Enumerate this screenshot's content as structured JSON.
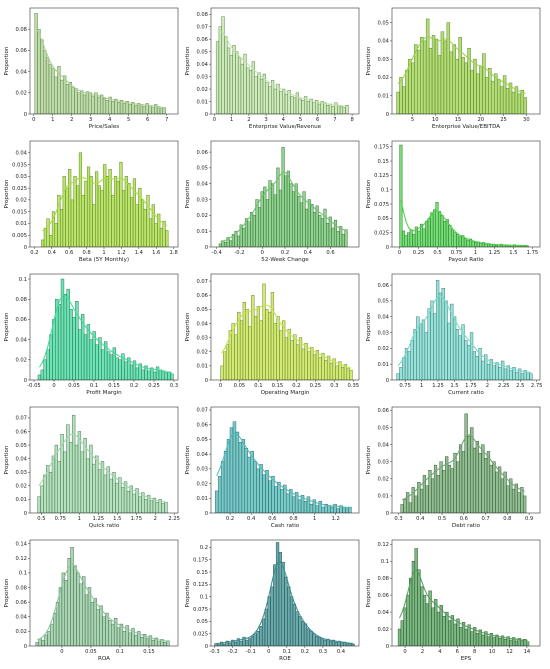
{
  "figure": {
    "ylabel": "Proportion"
  },
  "chart_data": [
    {
      "type": "bar",
      "xlabel": "Price/Sales",
      "ylabel": "Proportion",
      "color": "#a8d08d",
      "edge": "#5a7d4a",
      "xlim": [
        -0.2,
        7.6
      ],
      "ylim": [
        0,
        0.1
      ],
      "xticks": [
        0,
        1,
        2,
        3,
        4,
        5,
        6,
        7
      ],
      "yticks": [
        0,
        0.02,
        0.04,
        0.06,
        0.08
      ],
      "bin_start": 0.05,
      "bin_width": 0.15,
      "values": [
        0.095,
        0.08,
        0.07,
        0.06,
        0.053,
        0.047,
        0.043,
        0.035,
        0.045,
        0.032,
        0.036,
        0.028,
        0.03,
        0.025,
        0.024,
        0.02,
        0.022,
        0.018,
        0.021,
        0.02,
        0.017,
        0.02,
        0.016,
        0.018,
        0.015,
        0.013,
        0.016,
        0.012,
        0.014,
        0.011,
        0.013,
        0.01,
        0.012,
        0.009,
        0.011,
        0.008,
        0.01,
        0.009,
        0.007,
        0.01,
        0.008,
        0.006,
        0.009,
        0.007,
        0.005,
        0.006
      ]
    },
    {
      "type": "bar",
      "xlabel": "Enterprise Value/Revenue",
      "ylabel": "Proportion",
      "color": "#bfe3a6",
      "edge": "#4f7a3d",
      "xlim": [
        -0.2,
        8.4
      ],
      "ylim": [
        0,
        0.085
      ],
      "xticks": [
        0,
        1,
        2,
        3,
        4,
        5,
        6,
        7,
        8
      ],
      "yticks": [
        0,
        0.01,
        0.02,
        0.03,
        0.04,
        0.05,
        0.06,
        0.07,
        0.08
      ],
      "bin_start": 0.1,
      "bin_width": 0.16,
      "values": [
        0.058,
        0.07,
        0.078,
        0.062,
        0.053,
        0.047,
        0.055,
        0.05,
        0.045,
        0.04,
        0.048,
        0.037,
        0.035,
        0.042,
        0.03,
        0.033,
        0.028,
        0.032,
        0.025,
        0.022,
        0.027,
        0.02,
        0.024,
        0.018,
        0.02,
        0.016,
        0.019,
        0.014,
        0.013,
        0.017,
        0.012,
        0.011,
        0.014,
        0.01,
        0.012,
        0.009,
        0.011,
        0.008,
        0.01,
        0.009,
        0.007,
        0.008,
        0.006,
        0.009,
        0.007,
        0.006,
        0.005,
        0.007
      ]
    },
    {
      "type": "bar",
      "xlabel": "Enterprise Value/EBITDA",
      "ylabel": "Proportion",
      "color": "#9cd14a",
      "edge": "#4d7a22",
      "xlim": [
        0.5,
        33
      ],
      "ylim": [
        0,
        0.058
      ],
      "xticks": [
        5,
        10,
        15,
        20,
        25,
        30
      ],
      "yticks": [
        0,
        0.01,
        0.02,
        0.03,
        0.04,
        0.05
      ],
      "bin_start": 1.5,
      "bin_width": 0.65,
      "values": [
        0.012,
        0.02,
        0.015,
        0.024,
        0.03,
        0.028,
        0.038,
        0.035,
        0.042,
        0.04,
        0.052,
        0.036,
        0.043,
        0.041,
        0.032,
        0.045,
        0.04,
        0.05,
        0.034,
        0.038,
        0.03,
        0.042,
        0.031,
        0.028,
        0.036,
        0.024,
        0.03,
        0.022,
        0.026,
        0.033,
        0.02,
        0.025,
        0.018,
        0.022,
        0.019,
        0.015,
        0.021,
        0.014,
        0.017,
        0.012,
        0.015,
        0.011,
        0.013,
        0.009
      ]
    },
    {
      "type": "bar",
      "xlabel": "Beta (5Y Monthly)",
      "ylabel": "Proportion",
      "color": "#a6dc3c",
      "edge": "#557a1d",
      "xlim": [
        0.15,
        1.85
      ],
      "ylim": [
        0,
        0.045
      ],
      "xticks": [
        0.2,
        0.4,
        0.6,
        0.8,
        1.0,
        1.2,
        1.4,
        1.6,
        1.8
      ],
      "yticks": [
        0,
        0.005,
        0.01,
        0.015,
        0.02,
        0.025,
        0.03,
        0.035,
        0.04
      ],
      "bin_start": 0.28,
      "bin_width": 0.031,
      "values": [
        0.003,
        0.008,
        0.012,
        0.005,
        0.015,
        0.01,
        0.022,
        0.016,
        0.03,
        0.025,
        0.033,
        0.02,
        0.03,
        0.026,
        0.04,
        0.022,
        0.028,
        0.034,
        0.03,
        0.018,
        0.032,
        0.026,
        0.024,
        0.035,
        0.03,
        0.033,
        0.022,
        0.03,
        0.028,
        0.036,
        0.024,
        0.03,
        0.027,
        0.021,
        0.029,
        0.018,
        0.025,
        0.02,
        0.016,
        0.022,
        0.012,
        0.018,
        0.01,
        0.014,
        0.008,
        0.011,
        0.007
      ]
    },
    {
      "type": "bar",
      "xlabel": "52-Week Change",
      "ylabel": "Proportion",
      "color": "#6cc36c",
      "edge": "#2f6a2f",
      "xlim": [
        -0.45,
        0.85
      ],
      "ylim": [
        0,
        0.067
      ],
      "xticks": [
        -0.4,
        -0.2,
        0,
        0.2,
        0.4,
        0.6
      ],
      "yticks": [
        0,
        0.01,
        0.02,
        0.03,
        0.04,
        0.05,
        0.06
      ],
      "bin_start": -0.38,
      "bin_width": 0.023,
      "values": [
        0.002,
        0.004,
        0.003,
        0.006,
        0.004,
        0.008,
        0.01,
        0.007,
        0.014,
        0.012,
        0.018,
        0.016,
        0.022,
        0.02,
        0.03,
        0.025,
        0.035,
        0.038,
        0.03,
        0.042,
        0.04,
        0.033,
        0.05,
        0.036,
        0.063,
        0.045,
        0.048,
        0.04,
        0.035,
        0.04,
        0.032,
        0.028,
        0.035,
        0.024,
        0.03,
        0.027,
        0.022,
        0.026,
        0.02,
        0.018,
        0.024,
        0.015,
        0.019,
        0.012,
        0.017,
        0.01,
        0.013,
        0.008,
        0.011
      ]
    },
    {
      "type": "bar",
      "xlabel": "Payout Ratio",
      "ylabel": "Proportion",
      "color": "#4ad34a",
      "edge": "#237023",
      "xlim": [
        -0.1,
        1.85
      ],
      "ylim": [
        0,
        0.185
      ],
      "xticks": [
        0.0,
        0.25,
        0.5,
        0.75,
        1.0,
        1.25,
        1.5,
        1.75
      ],
      "yticks": [
        0,
        0.025,
        0.05,
        0.075,
        0.1,
        0.125,
        0.15,
        0.175
      ],
      "bin_start": 0.0,
      "bin_width": 0.034,
      "values": [
        0.178,
        0.028,
        0.02,
        0.025,
        0.03,
        0.022,
        0.035,
        0.028,
        0.04,
        0.032,
        0.045,
        0.05,
        0.06,
        0.065,
        0.078,
        0.062,
        0.055,
        0.045,
        0.048,
        0.038,
        0.03,
        0.025,
        0.022,
        0.018,
        0.02,
        0.015,
        0.012,
        0.014,
        0.01,
        0.008,
        0.009,
        0.006,
        0.008,
        0.005,
        0.006,
        0.004,
        0.005,
        0.003,
        0.004,
        0.005,
        0.003,
        0.004,
        0.002,
        0.003,
        0.004,
        0.002,
        0.003,
        0.002,
        0.003,
        0.002
      ]
    },
    {
      "type": "bar",
      "xlabel": "Profit Margin",
      "ylabel": "Proportion",
      "color": "#3fd99a",
      "edge": "#1f7050",
      "xlim": [
        -0.06,
        0.31
      ],
      "ylim": [
        0,
        0.105
      ],
      "xticks": [
        -0.05,
        0.0,
        0.05,
        0.1,
        0.15,
        0.2,
        0.25,
        0.3
      ],
      "yticks": [
        0,
        0.02,
        0.04,
        0.06,
        0.08,
        0.1
      ],
      "bin_start": -0.04,
      "bin_width": 0.0072,
      "values": [
        0.005,
        0.01,
        0.02,
        0.03,
        0.045,
        0.06,
        0.08,
        0.075,
        0.1,
        0.085,
        0.09,
        0.07,
        0.062,
        0.078,
        0.05,
        0.065,
        0.045,
        0.055,
        0.04,
        0.048,
        0.035,
        0.042,
        0.03,
        0.038,
        0.028,
        0.025,
        0.032,
        0.022,
        0.02,
        0.026,
        0.018,
        0.022,
        0.015,
        0.019,
        0.012,
        0.016,
        0.01,
        0.014,
        0.009,
        0.012,
        0.008,
        0.013,
        0.01,
        0.009,
        0.007,
        0.008,
        0.006
      ]
    },
    {
      "type": "bar",
      "xlabel": "Operating Margin",
      "ylabel": "Proportion",
      "color": "#c2e24a",
      "edge": "#6a7d20",
      "xlim": [
        -0.025,
        0.365
      ],
      "ylim": [
        0,
        0.075
      ],
      "xticks": [
        0.0,
        0.05,
        0.1,
        0.15,
        0.2,
        0.25,
        0.3,
        0.35
      ],
      "yticks": [
        0,
        0.01,
        0.02,
        0.03,
        0.04,
        0.05,
        0.06,
        0.07
      ],
      "bin_start": 0.0,
      "bin_width": 0.0074,
      "values": [
        0.01,
        0.02,
        0.025,
        0.035,
        0.04,
        0.032,
        0.048,
        0.042,
        0.055,
        0.05,
        0.038,
        0.06,
        0.045,
        0.052,
        0.042,
        0.068,
        0.05,
        0.048,
        0.062,
        0.04,
        0.045,
        0.035,
        0.042,
        0.03,
        0.036,
        0.028,
        0.032,
        0.025,
        0.03,
        0.022,
        0.026,
        0.02,
        0.023,
        0.018,
        0.021,
        0.016,
        0.019,
        0.014,
        0.017,
        0.012,
        0.015,
        0.01,
        0.013,
        0.009,
        0.011,
        0.008,
        0.007
      ]
    },
    {
      "type": "bar",
      "xlabel": "Current ratio",
      "ylabel": "Proportion",
      "color": "#78d8cc",
      "edge": "#2f7870",
      "xlim": [
        0.55,
        2.8
      ],
      "ylim": [
        0,
        0.067
      ],
      "xticks": [
        0.75,
        1.0,
        1.25,
        1.5,
        1.75,
        2.0,
        2.25,
        2.5,
        2.75
      ],
      "yticks": [
        0,
        0.01,
        0.02,
        0.03,
        0.04,
        0.05,
        0.06
      ],
      "bin_start": 0.62,
      "bin_width": 0.043,
      "values": [
        0.004,
        0.008,
        0.014,
        0.02,
        0.018,
        0.025,
        0.032,
        0.04,
        0.035,
        0.038,
        0.03,
        0.045,
        0.05,
        0.042,
        0.063,
        0.055,
        0.058,
        0.05,
        0.036,
        0.048,
        0.04,
        0.032,
        0.028,
        0.035,
        0.025,
        0.022,
        0.03,
        0.018,
        0.015,
        0.02,
        0.012,
        0.016,
        0.01,
        0.013,
        0.009,
        0.011,
        0.008,
        0.012,
        0.007,
        0.009,
        0.006,
        0.008,
        0.005,
        0.007,
        0.004,
        0.006,
        0.005,
        0.004
      ]
    },
    {
      "type": "bar",
      "xlabel": "Quick ratio",
      "ylabel": "Proportion",
      "color": "#9ed6a8",
      "edge": "#3d7348",
      "xlim": [
        0.35,
        2.3
      ],
      "ylim": [
        0,
        0.078
      ],
      "xticks": [
        0.5,
        0.75,
        1.0,
        1.25,
        1.5,
        1.75,
        2.0,
        2.25
      ],
      "yticks": [
        0,
        0.01,
        0.02,
        0.03,
        0.04,
        0.05,
        0.06,
        0.07
      ],
      "bin_start": 0.45,
      "bin_width": 0.038,
      "values": [
        0.012,
        0.02,
        0.028,
        0.035,
        0.03,
        0.042,
        0.05,
        0.038,
        0.058,
        0.045,
        0.065,
        0.052,
        0.072,
        0.05,
        0.06,
        0.045,
        0.055,
        0.04,
        0.05,
        0.036,
        0.042,
        0.032,
        0.038,
        0.028,
        0.034,
        0.025,
        0.03,
        0.022,
        0.026,
        0.019,
        0.023,
        0.016,
        0.02,
        0.014,
        0.018,
        0.012,
        0.015,
        0.01,
        0.013,
        0.009,
        0.011,
        0.008,
        0.01,
        0.007,
        0.008
      ]
    },
    {
      "type": "bar",
      "xlabel": "Cash ratio",
      "ylabel": "Proportion",
      "color": "#4fb8b8",
      "edge": "#1f6262",
      "xlim": [
        0.02,
        1.42
      ],
      "ylim": [
        0,
        0.072
      ],
      "xticks": [
        0.2,
        0.4,
        0.6,
        0.8,
        1.0,
        1.2
      ],
      "yticks": [
        0,
        0.01,
        0.02,
        0.03,
        0.04,
        0.05,
        0.06,
        0.07
      ],
      "bin_start": 0.06,
      "bin_width": 0.028,
      "values": [
        0.015,
        0.025,
        0.035,
        0.042,
        0.05,
        0.058,
        0.062,
        0.055,
        0.048,
        0.05,
        0.044,
        0.038,
        0.042,
        0.035,
        0.03,
        0.033,
        0.026,
        0.029,
        0.022,
        0.025,
        0.018,
        0.021,
        0.016,
        0.019,
        0.013,
        0.016,
        0.011,
        0.014,
        0.009,
        0.012,
        0.008,
        0.011,
        0.006,
        0.009,
        0.005,
        0.008,
        0.004,
        0.006,
        0.005,
        0.004,
        0.006,
        0.003,
        0.005,
        0.004,
        0.003,
        0.004
      ]
    },
    {
      "type": "bar",
      "xlabel": "Debt ratio",
      "ylabel": "Proportion",
      "color": "#6fa86f",
      "edge": "#2e542e",
      "xlim": [
        0.27,
        0.95
      ],
      "ylim": [
        0,
        0.062
      ],
      "xticks": [
        0.3,
        0.4,
        0.5,
        0.6,
        0.7,
        0.8,
        0.9
      ],
      "yticks": [
        0,
        0.01,
        0.02,
        0.03,
        0.04,
        0.05,
        0.06
      ],
      "bin_start": 0.31,
      "bin_width": 0.0128,
      "values": [
        0.005,
        0.008,
        0.012,
        0.006,
        0.015,
        0.01,
        0.018,
        0.014,
        0.022,
        0.016,
        0.025,
        0.02,
        0.028,
        0.022,
        0.03,
        0.025,
        0.033,
        0.028,
        0.026,
        0.035,
        0.03,
        0.04,
        0.036,
        0.058,
        0.045,
        0.05,
        0.038,
        0.042,
        0.035,
        0.04,
        0.032,
        0.036,
        0.028,
        0.03,
        0.024,
        0.027,
        0.02,
        0.024,
        0.016,
        0.02,
        0.014,
        0.017,
        0.012,
        0.015,
        0.01
      ]
    },
    {
      "type": "bar",
      "xlabel": "ROA",
      "ylabel": "Proportion",
      "color": "#8ec59a",
      "edge": "#3d6a48",
      "xlim": [
        -0.055,
        0.2
      ],
      "ylim": [
        0,
        0.145
      ],
      "xticks": [
        0.0,
        0.05,
        0.1,
        0.15
      ],
      "yticks": [
        0,
        0.02,
        0.04,
        0.06,
        0.08,
        0.1,
        0.12,
        0.14
      ],
      "bin_start": -0.045,
      "bin_width": 0.005,
      "values": [
        0.005,
        0.01,
        0.008,
        0.015,
        0.02,
        0.03,
        0.045,
        0.06,
        0.08,
        0.1,
        0.09,
        0.12,
        0.135,
        0.11,
        0.1,
        0.085,
        0.095,
        0.07,
        0.08,
        0.06,
        0.065,
        0.05,
        0.055,
        0.04,
        0.045,
        0.035,
        0.03,
        0.038,
        0.025,
        0.03,
        0.02,
        0.028,
        0.018,
        0.024,
        0.015,
        0.02,
        0.012,
        0.016,
        0.01,
        0.014,
        0.008,
        0.011,
        0.006,
        0.009,
        0.005,
        0.007
      ]
    },
    {
      "type": "bar",
      "xlabel": "ROE",
      "ylabel": "Proportion",
      "color": "#3a8c8f",
      "edge": "#1a4c4e",
      "xlim": [
        -0.32,
        0.5
      ],
      "ylim": [
        0,
        0.215
      ],
      "xticks": [
        -0.3,
        -0.2,
        -0.1,
        0.0,
        0.1,
        0.2,
        0.3,
        0.4
      ],
      "yticks": [
        0,
        0.025,
        0.05,
        0.075,
        0.1,
        0.125,
        0.15,
        0.175,
        0.2
      ],
      "bin_start": -0.3,
      "bin_width": 0.0155,
      "values": [
        0.005,
        0.003,
        0.008,
        0.004,
        0.01,
        0.006,
        0.012,
        0.008,
        0.015,
        0.01,
        0.018,
        0.012,
        0.015,
        0.02,
        0.025,
        0.03,
        0.04,
        0.055,
        0.075,
        0.1,
        0.12,
        0.165,
        0.21,
        0.19,
        0.17,
        0.14,
        0.12,
        0.1,
        0.085,
        0.07,
        0.06,
        0.05,
        0.045,
        0.035,
        0.03,
        0.025,
        0.02,
        0.018,
        0.015,
        0.012,
        0.014,
        0.01,
        0.012,
        0.008,
        0.01,
        0.007,
        0.008,
        0.006,
        0.005,
        0.004
      ]
    },
    {
      "type": "bar",
      "xlabel": "EPS",
      "ylabel": "Proportion",
      "color": "#52a05a",
      "edge": "#244e29",
      "xlim": [
        -1.5,
        15.5
      ],
      "ylim": [
        0,
        0.125
      ],
      "xticks": [
        0,
        2,
        4,
        6,
        8,
        10,
        12,
        14
      ],
      "yticks": [
        0,
        0.02,
        0.04,
        0.06,
        0.08,
        0.1,
        0.12
      ],
      "bin_start": -0.8,
      "bin_width": 0.32,
      "values": [
        0.02,
        0.03,
        0.045,
        0.06,
        0.08,
        0.1,
        0.115,
        0.09,
        0.07,
        0.06,
        0.05,
        0.065,
        0.045,
        0.055,
        0.04,
        0.048,
        0.035,
        0.04,
        0.03,
        0.036,
        0.026,
        0.032,
        0.022,
        0.028,
        0.02,
        0.025,
        0.017,
        0.022,
        0.015,
        0.019,
        0.013,
        0.017,
        0.011,
        0.015,
        0.01,
        0.013,
        0.009,
        0.012,
        0.008,
        0.011,
        0.007,
        0.01,
        0.006,
        0.009,
        0.006,
        0.008,
        0.005
      ]
    }
  ]
}
